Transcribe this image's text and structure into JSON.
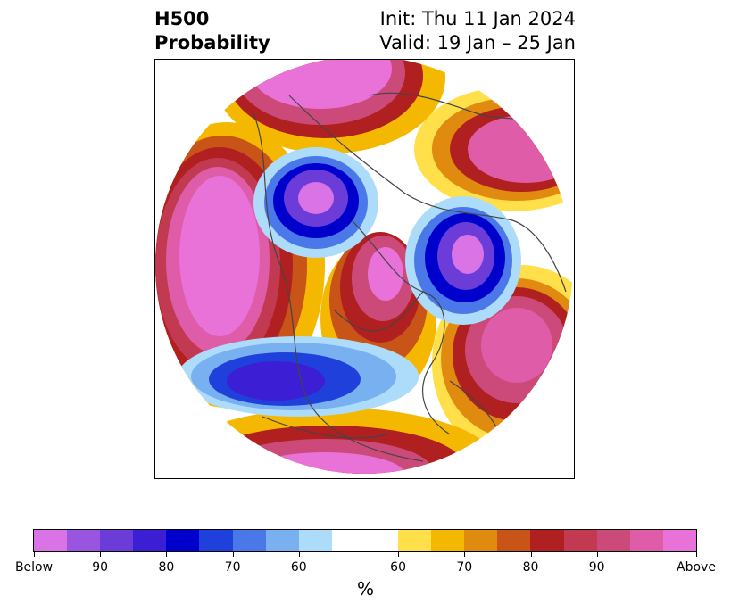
{
  "title": {
    "left_line1": "H500",
    "left_line2": "Probability",
    "right_line1": "Init: Thu 11 Jan 2024",
    "right_line2": "Valid: 19 Jan – 25 Jan"
  },
  "colorbar": {
    "colors": [
      "#d973e6",
      "#9a55e0",
      "#6b3cd8",
      "#3c1fd4",
      "#0000cc",
      "#2040dc",
      "#4a78e8",
      "#78b0f0",
      "#acdcfa",
      "#ffffff",
      "#ffffff",
      "#ffe04a",
      "#f5b800",
      "#e08a10",
      "#c85418",
      "#b02020",
      "#c23a52",
      "#cc4a7a",
      "#de5ca8",
      "#e872d8"
    ],
    "tick_labels": [
      "Below",
      "90",
      "80",
      "70",
      "60",
      "60",
      "70",
      "80",
      "90",
      "Above"
    ],
    "unit_label": "%"
  },
  "map": {
    "land_color": "#ffffff",
    "border_color": "#444444"
  }
}
